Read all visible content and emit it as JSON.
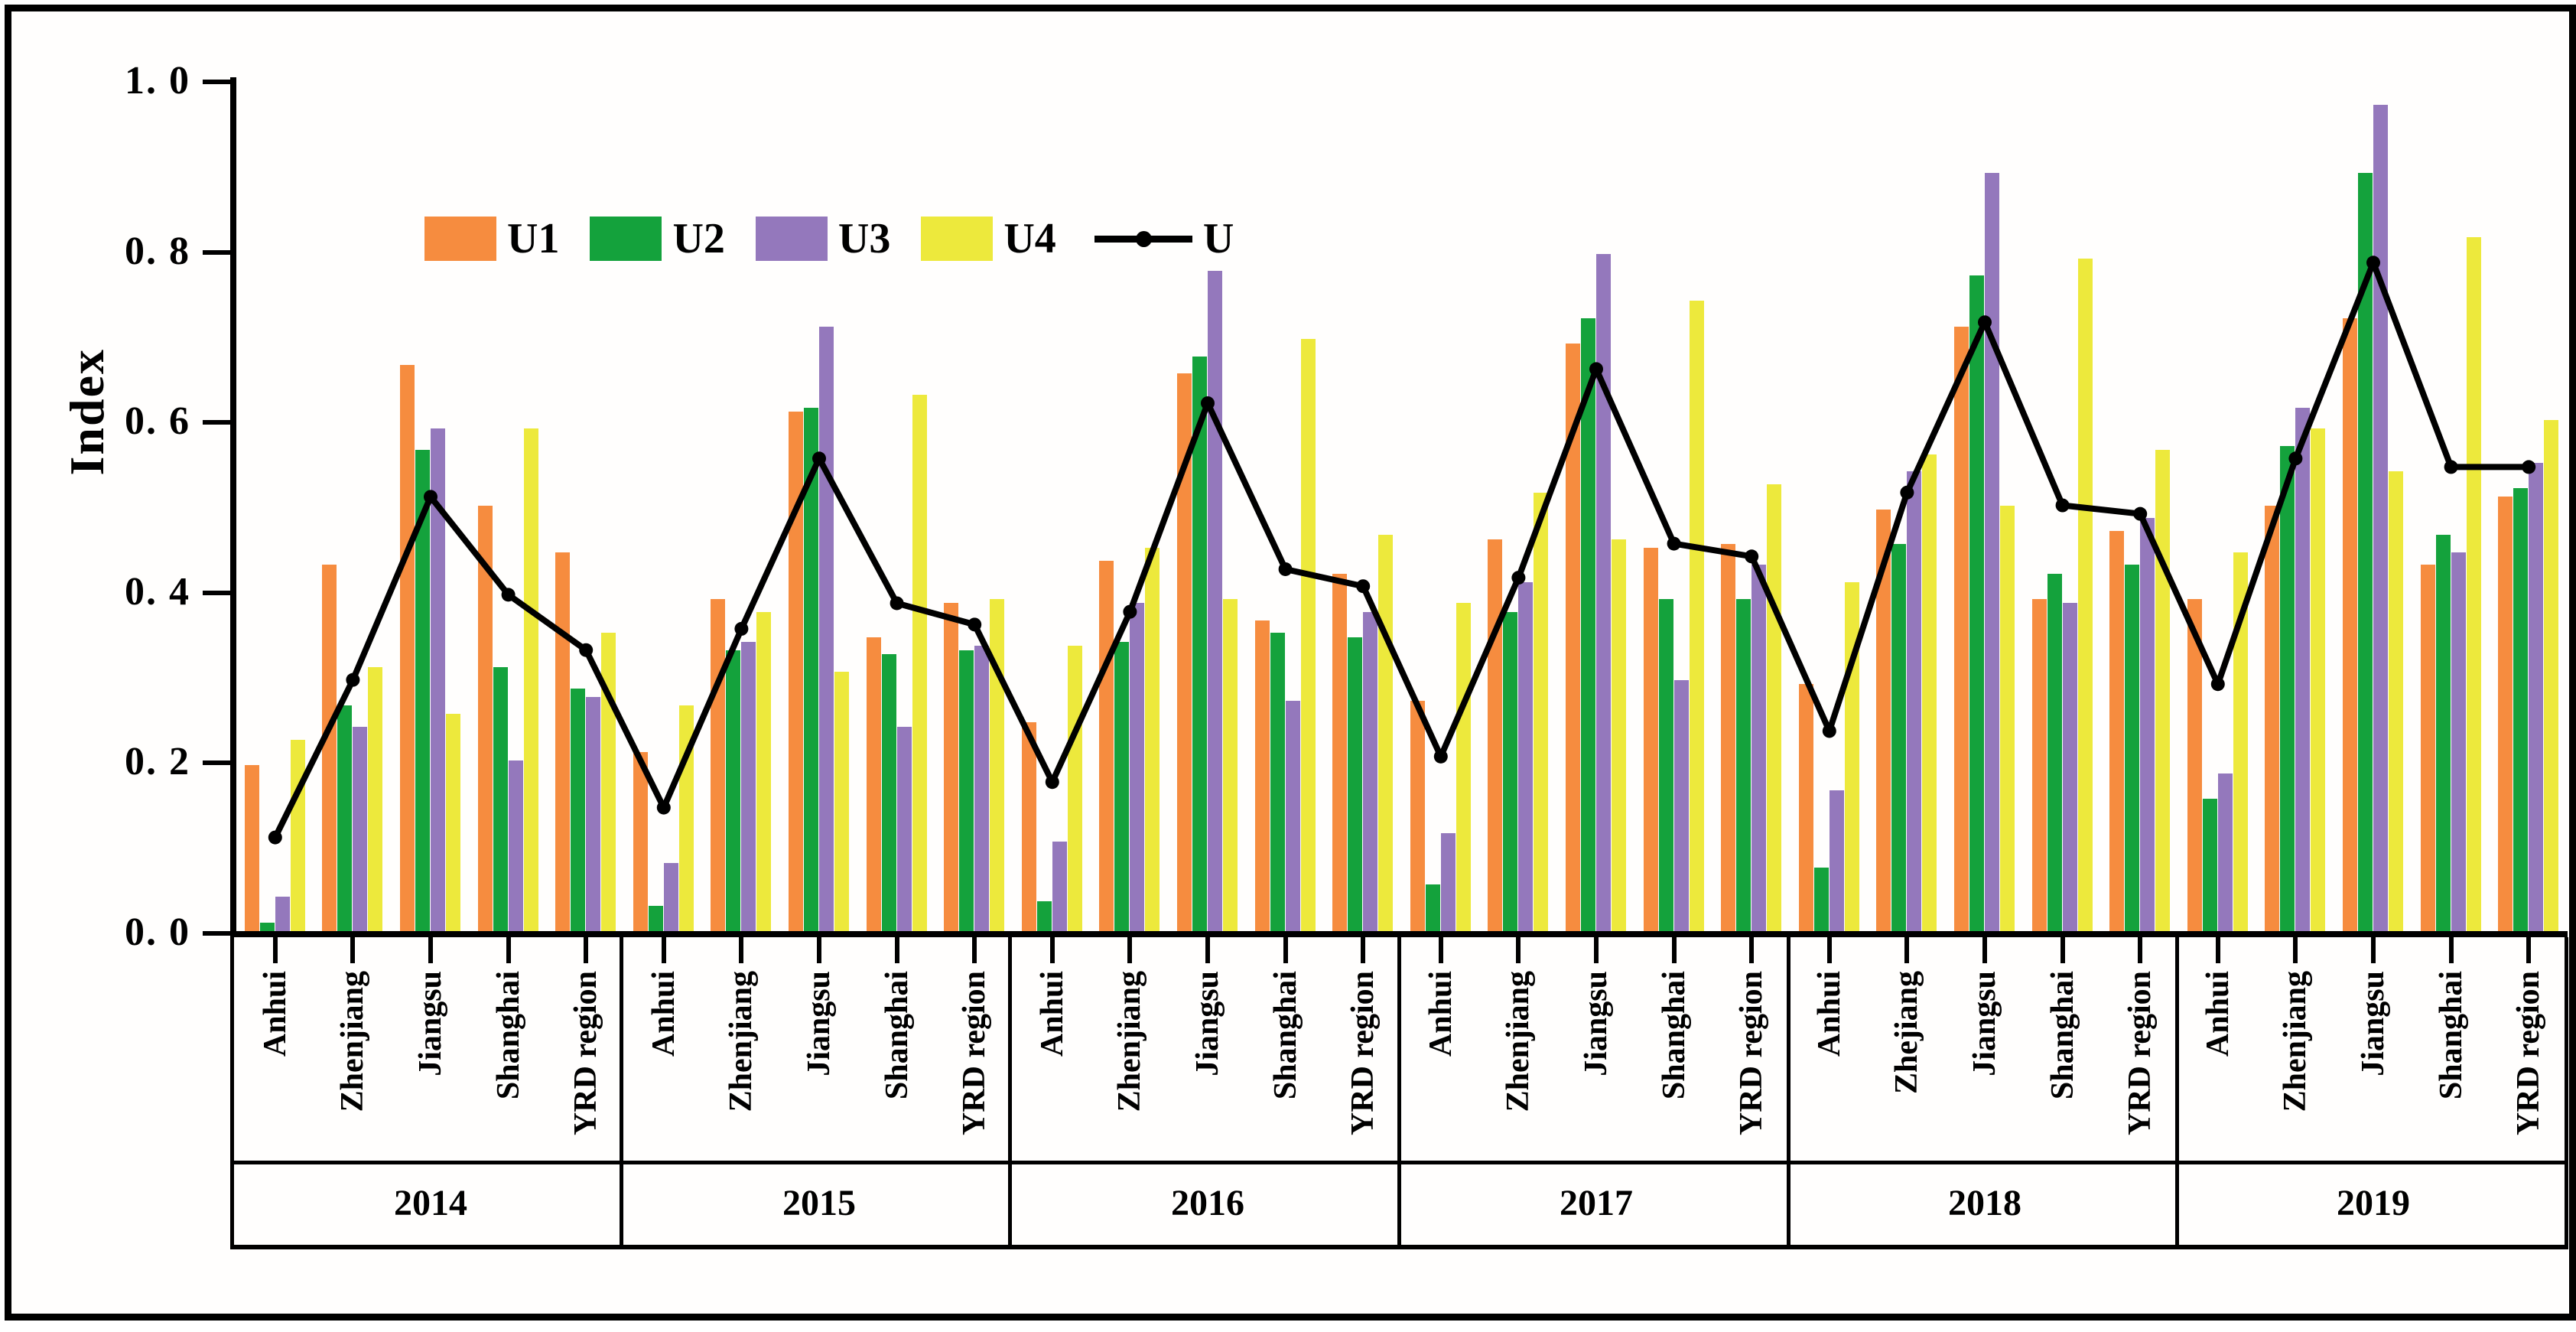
{
  "figure": {
    "ylabel": "Index",
    "background_color": "#ffffff",
    "frame_color": "#000000"
  },
  "legend": {
    "items": [
      {
        "label": "U1",
        "color": "#F68C3F",
        "type": "swatch"
      },
      {
        "label": "U2",
        "color": "#14A23C",
        "type": "swatch"
      },
      {
        "label": "U3",
        "color": "#9478BC",
        "type": "swatch"
      },
      {
        "label": "U4",
        "color": "#EDE93C",
        "type": "swatch"
      },
      {
        "label": "U",
        "color": "#000000",
        "type": "line"
      }
    ]
  },
  "chart_data": {
    "type": "bar",
    "title": "",
    "xlabel": "",
    "ylabel": "Index",
    "ylim": [
      0,
      1
    ],
    "grid": false,
    "legend_position": "upper left inside plot",
    "yticks": {
      "values": [
        1.0,
        0.8,
        0.6,
        0.4,
        0.2,
        0.0
      ],
      "labels": [
        "1. 0",
        "0. 8",
        "0. 6",
        "0. 4",
        "0. 2",
        "0. 0"
      ]
    },
    "years": [
      "2014",
      "2015",
      "2016",
      "2017",
      "2018",
      "2019"
    ],
    "regions_by_year": [
      [
        "Anhui",
        "Zhenjiang",
        "Jiangsu",
        "Shanghai",
        "YRD region"
      ],
      [
        "Anhui",
        "Zhenjiang",
        "Jiangsu",
        "Shanghai",
        "YRD region"
      ],
      [
        "Anhui",
        "Zhenjiang",
        "Jiangsu",
        "Shanghai",
        "YRD region"
      ],
      [
        "Anhui",
        "Zhenjiang",
        "Jiangsu",
        "Shanghai",
        "YRD region"
      ],
      [
        "Anhui",
        "Zhejiang",
        "Jiangsu",
        "Shanghai",
        "YRD region"
      ],
      [
        "Anhui",
        "Zhenjiang",
        "Jiangsu",
        "Shanghai",
        "YRD region"
      ]
    ],
    "series": [
      {
        "name": "U1",
        "color": "#F68C3F",
        "values": [
          [
            0.195,
            0.43,
            0.665,
            0.5,
            0.445
          ],
          [
            0.21,
            0.39,
            0.61,
            0.345,
            0.385
          ],
          [
            0.245,
            0.435,
            0.655,
            0.365,
            0.42
          ],
          [
            0.27,
            0.46,
            0.69,
            0.45,
            0.455
          ],
          [
            0.29,
            0.495,
            0.71,
            0.39,
            0.47
          ],
          [
            0.39,
            0.5,
            0.72,
            0.43,
            0.51
          ]
        ]
      },
      {
        "name": "U2",
        "color": "#14A23C",
        "values": [
          [
            0.01,
            0.265,
            0.565,
            0.31,
            0.285
          ],
          [
            0.03,
            0.33,
            0.615,
            0.325,
            0.33
          ],
          [
            0.035,
            0.34,
            0.675,
            0.35,
            0.345
          ],
          [
            0.055,
            0.375,
            0.72,
            0.39,
            0.39
          ],
          [
            0.075,
            0.455,
            0.77,
            0.42,
            0.43
          ],
          [
            0.155,
            0.57,
            0.89,
            0.465,
            0.52
          ]
        ]
      },
      {
        "name": "U3",
        "color": "#9478BC",
        "values": [
          [
            0.04,
            0.24,
            0.59,
            0.2,
            0.275
          ],
          [
            0.08,
            0.34,
            0.71,
            0.24,
            0.335
          ],
          [
            0.105,
            0.385,
            0.775,
            0.27,
            0.375
          ],
          [
            0.115,
            0.41,
            0.795,
            0.295,
            0.43
          ],
          [
            0.165,
            0.54,
            0.89,
            0.385,
            0.485
          ],
          [
            0.185,
            0.615,
            0.97,
            0.445,
            0.55
          ]
        ]
      },
      {
        "name": "U4",
        "color": "#EDE93C",
        "values": [
          [
            0.225,
            0.31,
            0.255,
            0.59,
            0.35
          ],
          [
            0.265,
            0.375,
            0.305,
            0.63,
            0.39
          ],
          [
            0.335,
            0.45,
            0.39,
            0.695,
            0.465
          ],
          [
            0.385,
            0.515,
            0.46,
            0.74,
            0.525
          ],
          [
            0.41,
            0.56,
            0.5,
            0.79,
            0.565
          ],
          [
            0.445,
            0.59,
            0.54,
            0.815,
            0.6
          ]
        ]
      }
    ],
    "line_series": {
      "name": "U",
      "color": "#000000",
      "marker": "circle",
      "values": [
        [
          0.11,
          0.295,
          0.51,
          0.395,
          0.33
        ],
        [
          0.145,
          0.355,
          0.555,
          0.385,
          0.36
        ],
        [
          0.175,
          0.375,
          0.62,
          0.425,
          0.405
        ],
        [
          0.205,
          0.415,
          0.66,
          0.455,
          0.44
        ],
        [
          0.235,
          0.515,
          0.715,
          0.5,
          0.49
        ],
        [
          0.29,
          0.555,
          0.785,
          0.545,
          0.545
        ]
      ]
    }
  }
}
